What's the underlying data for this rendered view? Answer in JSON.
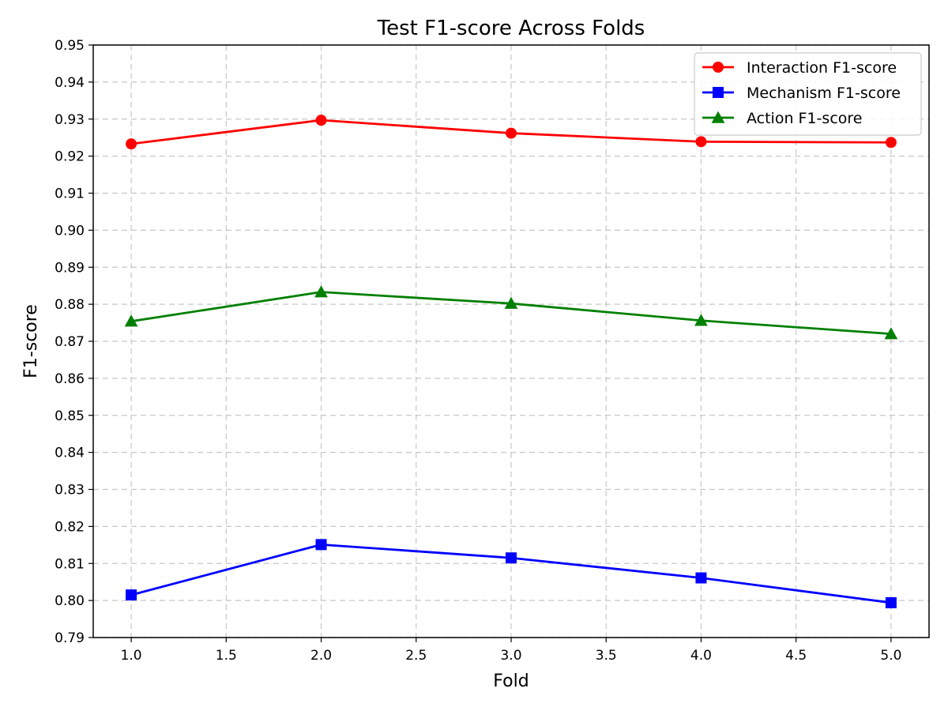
{
  "chart_data": {
    "type": "line",
    "title": "Test F1-score Across Folds",
    "xlabel": "Fold",
    "ylabel": "F1-score",
    "xlim": [
      0.8,
      5.2
    ],
    "ylim": [
      0.79,
      0.95
    ],
    "x_ticks": [
      "1.0",
      "1.5",
      "2.0",
      "2.5",
      "3.0",
      "3.5",
      "4.0",
      "4.5",
      "5.0"
    ],
    "y_ticks": [
      "0.79",
      "0.80",
      "0.81",
      "0.82",
      "0.83",
      "0.84",
      "0.85",
      "0.86",
      "0.87",
      "0.88",
      "0.89",
      "0.90",
      "0.91",
      "0.92",
      "0.93",
      "0.94",
      "0.95"
    ],
    "grid": true,
    "legend_position": "top-right",
    "x": [
      1,
      2,
      3,
      4,
      5
    ],
    "series": [
      {
        "name": "Interaction F1-score",
        "color": "#ff0000",
        "marker": "circle",
        "values": [
          0.9233,
          0.9297,
          0.9262,
          0.9239,
          0.9237
        ]
      },
      {
        "name": "Mechanism F1-score",
        "color": "#0000ff",
        "marker": "square",
        "values": [
          0.8015,
          0.8151,
          0.8115,
          0.8061,
          0.7994
        ]
      },
      {
        "name": "Action F1-score",
        "color": "#008000",
        "marker": "triangle",
        "values": [
          0.8754,
          0.8833,
          0.8802,
          0.8756,
          0.872
        ]
      }
    ]
  }
}
